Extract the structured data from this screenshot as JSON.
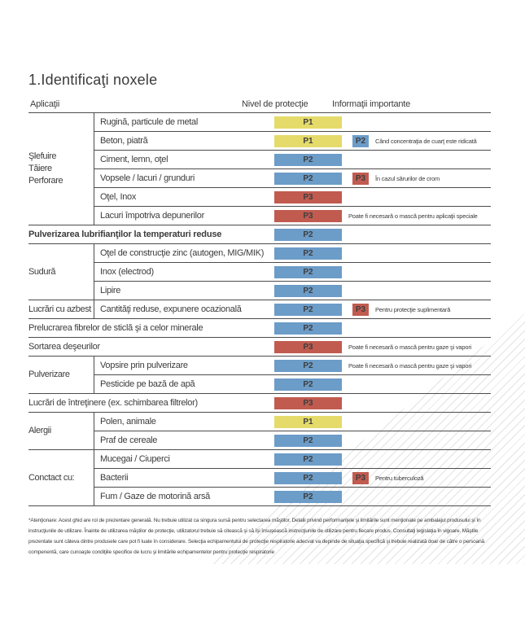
{
  "title": "1.Identificaţi noxele",
  "colors": {
    "p1": "#e5db6a",
    "p2": "#6c9cc8",
    "p3": "#c15b50",
    "border": "#4c4c4c",
    "hatch": "#e3e3e3",
    "text": "#3c3c3c"
  },
  "table": {
    "headers": {
      "applications": "Aplicaţii",
      "protection_level": "Nivel de protecţie",
      "important_info": "Informaţii importante"
    },
    "groups": {
      "slefuire": "Şlefuire\nTăiere\nPerforare",
      "sudura": "Sudură",
      "azbest": "Lucrări cu azbest",
      "pulverizare": "Pulverizare",
      "alergii": "Alergii",
      "contact": "Conctact cu:"
    },
    "rows": {
      "rugina": {
        "label": "Rugină, particule de metal",
        "level": "P1"
      },
      "beton": {
        "label": "Beton, piatră",
        "level": "P1",
        "extra": "P2",
        "note": "Când concentraţia de cuarţ este ridicată"
      },
      "ciment": {
        "label": "Ciment, lemn, oţel",
        "level": "P2"
      },
      "vopsele": {
        "label": "Vopsele / lacuri / grunduri",
        "level": "P2",
        "extra": "P3",
        "note": "În cazul sărurilor de crom"
      },
      "otel_inox": {
        "label": "Oţel, Inox",
        "level": "P3"
      },
      "lacuri": {
        "label": "Lacuri împotriva depunerilor",
        "level": "P3",
        "note": "Poate fi necesară o mască pentru aplicaţii speciale"
      },
      "pulverizarea_lubrifiantilor": {
        "label": "Pulverizarea lubrifianţilor la temperaturi reduse",
        "level": "P2"
      },
      "otel_constructie": {
        "label": "Oţel de construcţie zinc (autogen, MIG/MIK)",
        "level": "P2"
      },
      "inox_electrod": {
        "label": "Inox (electrod)",
        "level": "P2"
      },
      "lipire": {
        "label": "Lipire",
        "level": "P2"
      },
      "cantitati_reduse": {
        "label": "Cantităţi reduse, expunere ocazională",
        "level": "P2",
        "extra": "P3",
        "note": "Pentru protecţie suplimentară"
      },
      "prelucrarea_fibrelor": {
        "label": "Prelucrarea fibrelor de sticlă şi a celor minerale",
        "level": "P2"
      },
      "sortarea_deseurilor": {
        "label": "Sortarea deşeurilor",
        "level": "P3",
        "note": "Poate fi necesară o mască pentru gaze şi vapori"
      },
      "vopsire": {
        "label": "Vopsire prin pulverizare",
        "level": "P2",
        "note": "Poate fi necesară o mască pentru gaze şi vapori"
      },
      "pesticide": {
        "label": "Pesticide pe bază de apă",
        "level": "P2"
      },
      "lucrari_intretinere": {
        "label": "Lucrări de întreţinere (ex. schimbarea filtrelor)",
        "level": "P3"
      },
      "polen": {
        "label": "Polen, animale",
        "level": "P1"
      },
      "praf_cereale": {
        "label": "Praf de cereale",
        "level": "P2"
      },
      "mucegai": {
        "label": "Mucegai / Ciuperci",
        "level": "P2"
      },
      "bacterii": {
        "label": "Bacterii",
        "level": "P2",
        "extra": "P3",
        "note": "Pentru tuberculoză"
      },
      "fum": {
        "label": "Fum / Gaze de motorină arsă",
        "level": "P2"
      }
    }
  },
  "footnote": "*Atenţionare: Acest ghid are rol de prezentare generală. Nu trebuie utilizat ca singura sursă pentru selectarea măştilor. Detalii privind performanţele şi limitările sunt menţionate pe ambalajul produsului şi în instrucţiunile de utilizare. Înainte de utilizarea măştilor de protecţie, utilizatorul trebuie să citească şi să îşi însuşească instrucţiunile de utilizare pentru fiecare produs. Consultaţi legislaţia în vigoare. Măştile prezentate sunt câteva dintre produsele care pot fi luate în considerare. Selecţia echipamentului de protecţie respiratorie adecvat va depinde de situaţia specifică şi trebuie realizată doar de către o persoană compenentă, care cunoaşte condiţiile specifice de lucru şi limitările echipamentelor pentru protecţie respiratorie"
}
